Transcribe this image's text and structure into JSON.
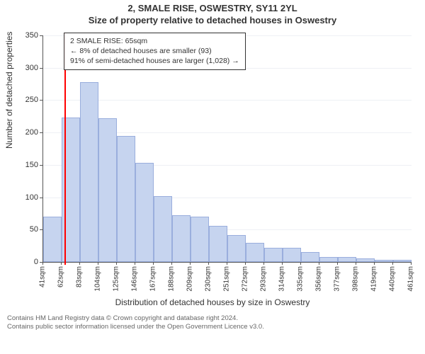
{
  "titles": {
    "main": "2, SMALE RISE, OSWESTRY, SY11 2YL",
    "sub": "Size of property relative to detached houses in Oswestry"
  },
  "chart": {
    "type": "histogram",
    "yaxis": {
      "title": "Number of detached properties",
      "ticks": [
        0,
        50,
        100,
        150,
        200,
        250,
        300,
        350
      ],
      "min": 0,
      "max": 350
    },
    "xaxis": {
      "title": "Distribution of detached houses by size in Oswestry",
      "tick_labels": [
        "41sqm",
        "62sqm",
        "83sqm",
        "104sqm",
        "125sqm",
        "146sqm",
        "167sqm",
        "188sqm",
        "209sqm",
        "230sqm",
        "251sqm",
        "272sqm",
        "293sqm",
        "314sqm",
        "335sqm",
        "356sqm",
        "377sqm",
        "398sqm",
        "419sqm",
        "440sqm",
        "461sqm"
      ],
      "start_value": 41,
      "end_value": 461,
      "bin_width": 21,
      "label_fontsize": 10
    },
    "bars": {
      "values": [
        70,
        223,
        278,
        222,
        195,
        153,
        102,
        72,
        70,
        56,
        42,
        30,
        22,
        22,
        15,
        8,
        8,
        6,
        3,
        3
      ],
      "fill_color": "#c6d4ef",
      "border_color": "#9aaedd",
      "border_width": 1
    },
    "marker": {
      "value_sqm": 65,
      "color": "#ff0000",
      "width": 2
    },
    "grid_color": "#eef0f5",
    "background_color": "#ffffff",
    "axis_color": "#555555",
    "text_color": "#333333",
    "label_fontsize": 11,
    "axis_title_fontsize": 12
  },
  "legend": {
    "line1": "2 SMALE RISE: 65sqm",
    "line2": "← 8% of detached houses are smaller (93)",
    "line3": "91% of semi-detached houses are larger (1,028) →"
  },
  "footer": {
    "line1": "Contains HM Land Registry data © Crown copyright and database right 2024.",
    "line2": "Contains public sector information licensed under the Open Government Licence v3.0."
  }
}
